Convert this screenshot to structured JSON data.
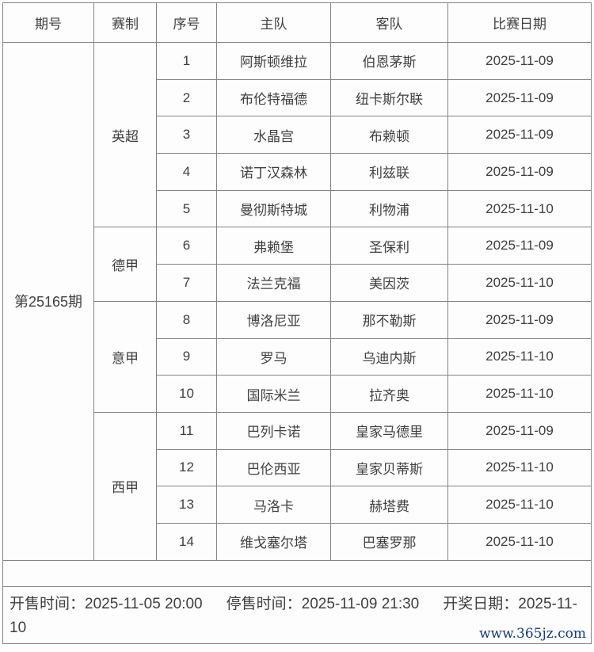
{
  "colors": {
    "border": "#848484",
    "text": "#3f3f3f",
    "watermark_blue": "#153c7f",
    "background": "#fdfdfd"
  },
  "table": {
    "headers": [
      "期号",
      "赛制",
      "序号",
      "主队",
      "客队",
      "比赛日期"
    ],
    "period": "第25165期",
    "groups": [
      {
        "league": "英超",
        "matches": [
          {
            "no": "1",
            "home": "阿斯顿维拉",
            "away": "伯恩茅斯",
            "date": "2025-11-09"
          },
          {
            "no": "2",
            "home": "布伦特福德",
            "away": "纽卡斯尔联",
            "date": "2025-11-09"
          },
          {
            "no": "3",
            "home": "水晶宫",
            "away": "布赖顿",
            "date": "2025-11-09"
          },
          {
            "no": "4",
            "home": "诺丁汉森林",
            "away": "利兹联",
            "date": "2025-11-09"
          },
          {
            "no": "5",
            "home": "曼彻斯特城",
            "away": "利物浦",
            "date": "2025-11-10"
          }
        ]
      },
      {
        "league": "德甲",
        "matches": [
          {
            "no": "6",
            "home": "弗赖堡",
            "away": "圣保利",
            "date": "2025-11-09"
          },
          {
            "no": "7",
            "home": "法兰克福",
            "away": "美因茨",
            "date": "2025-11-10"
          }
        ]
      },
      {
        "league": "意甲",
        "matches": [
          {
            "no": "8",
            "home": "博洛尼亚",
            "away": "那不勒斯",
            "date": "2025-11-09"
          },
          {
            "no": "9",
            "home": "罗马",
            "away": "乌迪内斯",
            "date": "2025-11-10"
          },
          {
            "no": "10",
            "home": "国际米兰",
            "away": "拉齐奥",
            "date": "2025-11-10"
          }
        ]
      },
      {
        "league": "西甲",
        "matches": [
          {
            "no": "11",
            "home": "巴列卡诺",
            "away": "皇家马德里",
            "date": "2025-11-09"
          },
          {
            "no": "12",
            "home": "巴伦西亚",
            "away": "皇家贝蒂斯",
            "date": "2025-11-10"
          },
          {
            "no": "13",
            "home": "马洛卡",
            "away": "赫塔费",
            "date": "2025-11-10"
          },
          {
            "no": "14",
            "home": "维戈塞尔塔",
            "away": "巴塞罗那",
            "date": "2025-11-10"
          }
        ]
      }
    ]
  },
  "footer": {
    "items": [
      {
        "label": "开售时间：",
        "value": "2025-11-05 20:00"
      },
      {
        "label": "停售时间：",
        "value": "2025-11-09 21:30"
      },
      {
        "label": "开奖日期：",
        "value": "2025-11-10"
      }
    ],
    "watermark": "www.365jz.com"
  }
}
